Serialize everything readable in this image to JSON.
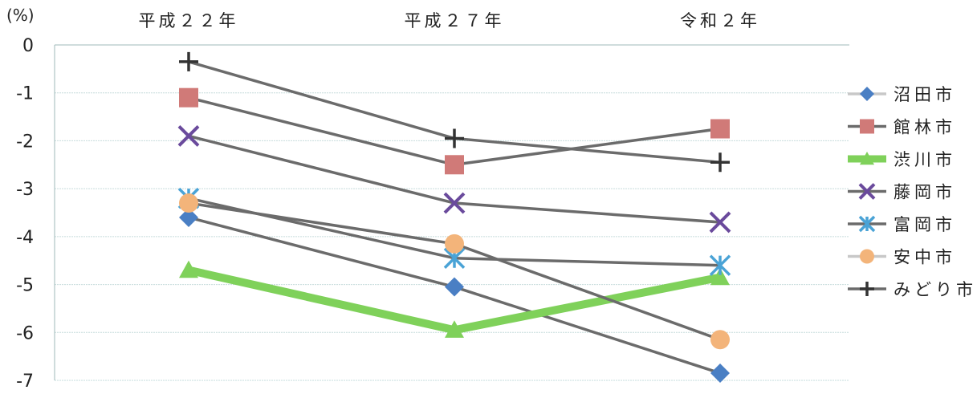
{
  "chart_data": {
    "type": "line",
    "unit": "(%)",
    "categories": [
      "平成２２年",
      "平成２７年",
      "令和２年"
    ],
    "ylim": [
      -7,
      0
    ],
    "yticks": [
      0,
      -1,
      -2,
      -3,
      -4,
      -5,
      -6,
      -7
    ],
    "grid": true,
    "legend_position": "right",
    "series": [
      {
        "name": "沼田市",
        "values": [
          -3.6,
          -5.05,
          -6.85
        ],
        "color": "#4a7fc4",
        "marker": "diamond"
      },
      {
        "name": "館林市",
        "values": [
          -1.1,
          -2.5,
          -1.75
        ],
        "color": "#d07a78",
        "marker": "square"
      },
      {
        "name": "渋川市",
        "values": [
          -4.7,
          -5.95,
          -4.85
        ],
        "color": "#7fd15a",
        "marker": "triangle"
      },
      {
        "name": "藤岡市",
        "values": [
          -1.9,
          -3.3,
          -3.7
        ],
        "color": "#6a4a9c",
        "marker": "x"
      },
      {
        "name": "富岡市",
        "values": [
          -3.2,
          -4.45,
          -4.6
        ],
        "color": "#4aa3d6",
        "marker": "asterisk"
      },
      {
        "name": "安中市",
        "values": [
          -3.3,
          -4.15,
          -6.15
        ],
        "color": "#f3b47a",
        "marker": "circle"
      },
      {
        "name": "みどり市",
        "values": [
          -0.35,
          -1.95,
          -2.45
        ],
        "color": "#333333",
        "marker": "plus"
      }
    ]
  }
}
